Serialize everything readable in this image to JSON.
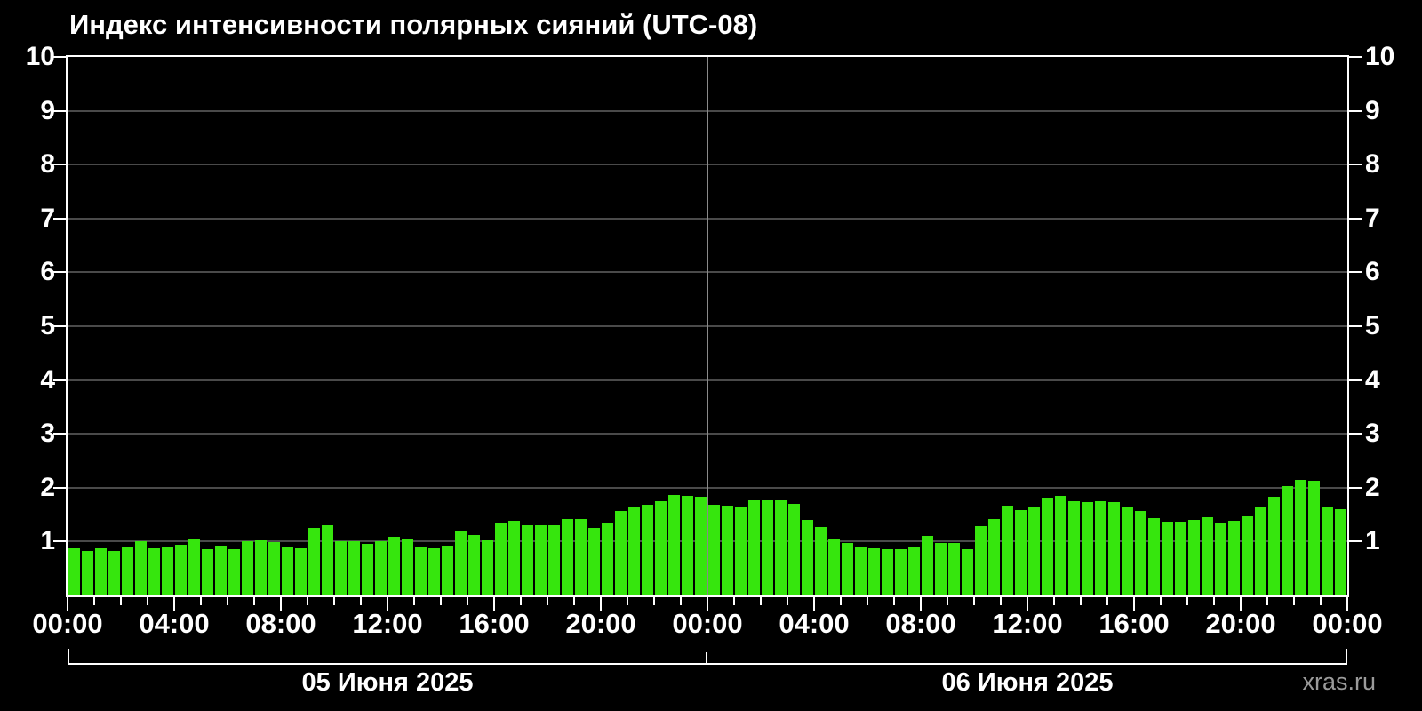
{
  "title": "Индекс интенсивности полярных сияний (UTC-08)",
  "watermark": "xras.ru",
  "colors": {
    "background": "#000000",
    "bar": "#36e60d",
    "axis": "#ffffff",
    "grid": "#4a4a4a",
    "day_divider": "#8a8a8a",
    "text": "#ffffff",
    "watermark_text": "#9a9a9a"
  },
  "chart_data": {
    "type": "bar",
    "title": "Индекс интенсивности полярных сияний (UTC-08)",
    "xlabel": "",
    "ylabel": "",
    "ylim": [
      0,
      10
    ],
    "yticks": [
      1,
      2,
      3,
      4,
      5,
      6,
      7,
      8,
      9,
      10
    ],
    "grid": "horizontal lines at each integer, vertical divider at midnight between days",
    "legend_position": "none",
    "interval_minutes": 30,
    "x_minor_tick_hours": 1,
    "x_major_tick_hours": 4,
    "x_tick_labels": [
      "00:00",
      "04:00",
      "08:00",
      "12:00",
      "16:00",
      "20:00",
      "00:00",
      "04:00",
      "08:00",
      "12:00",
      "16:00",
      "20:00",
      "00:00"
    ],
    "days": [
      {
        "date_label": "05 Июня 2025",
        "values": [
          0.88,
          0.83,
          0.88,
          0.82,
          0.91,
          1.0,
          0.88,
          0.9,
          0.94,
          1.06,
          0.86,
          0.93,
          0.85,
          1.0,
          1.03,
          0.99,
          0.9,
          0.88,
          1.25,
          1.3,
          1.01,
          1.01,
          0.95,
          1.0,
          1.09,
          1.05,
          0.9,
          0.87,
          0.93,
          1.21,
          1.13,
          1.03,
          1.33,
          1.38,
          1.31,
          1.3,
          1.3,
          1.42,
          1.42,
          1.25,
          1.33,
          1.57,
          1.63,
          1.68,
          1.75,
          1.87,
          1.84,
          1.83
        ]
      },
      {
        "date_label": "06 Июня 2025",
        "values": [
          1.69,
          1.67,
          1.65,
          1.77,
          1.77,
          1.77,
          1.7,
          1.41,
          1.27,
          1.05,
          0.98,
          0.9,
          0.88,
          0.86,
          0.86,
          0.91,
          1.1,
          0.98,
          0.97,
          0.85,
          1.29,
          1.42,
          1.66,
          1.59,
          1.63,
          1.81,
          1.84,
          1.75,
          1.73,
          1.75,
          1.74,
          1.64,
          1.57,
          1.43,
          1.37,
          1.37,
          1.41,
          1.45,
          1.36,
          1.38,
          1.47,
          1.63,
          1.83,
          2.03,
          2.14,
          2.13,
          1.63,
          1.6
        ]
      }
    ]
  }
}
